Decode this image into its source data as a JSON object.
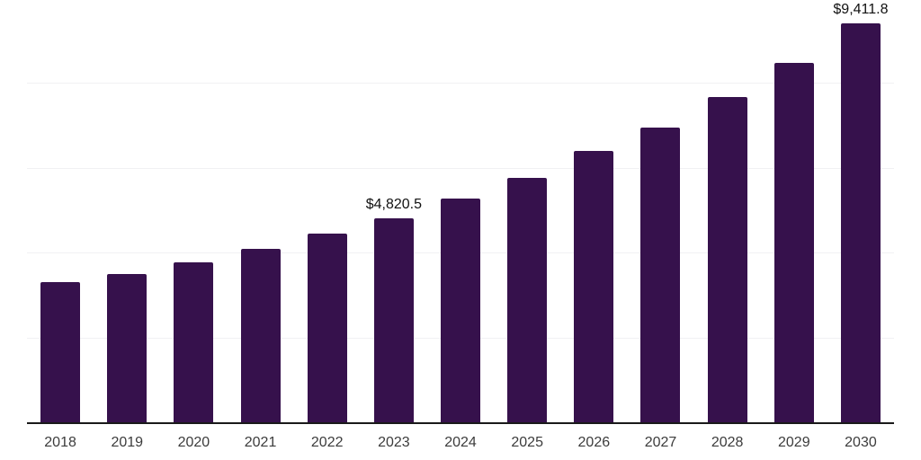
{
  "chart_data": {
    "type": "bar",
    "title": "",
    "xlabel": "",
    "ylabel": "",
    "categories": [
      "2018",
      "2019",
      "2020",
      "2021",
      "2022",
      "2023",
      "2024",
      "2025",
      "2026",
      "2027",
      "2028",
      "2029",
      "2030"
    ],
    "values": [
      3300,
      3500,
      3770,
      4080,
      4450,
      4820.5,
      5280,
      5760,
      6390,
      6950,
      7670,
      8480,
      9411.8
    ],
    "data_labels": [
      null,
      null,
      null,
      null,
      null,
      "$4,820.5",
      null,
      null,
      null,
      null,
      null,
      null,
      "$9,411.8"
    ],
    "ylim": [
      0,
      10000
    ],
    "gridlines": [
      2000,
      4000,
      6000,
      8000,
      10000
    ],
    "grid": "horizontal-only",
    "legend_position": "none",
    "y_tick_labels_visible": false
  },
  "colors": {
    "bar": "#36114c",
    "grid_line": "#f1f1f3",
    "axis_line": "#1a1a1a",
    "tick_label": "#3c3c3c",
    "data_label": "#111111",
    "background": "#ffffff"
  }
}
